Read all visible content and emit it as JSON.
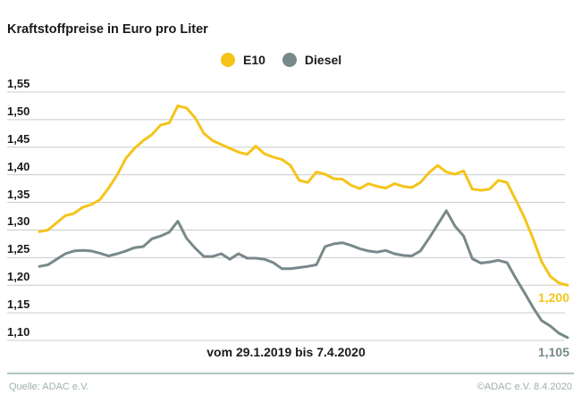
{
  "title": "Kraftstoffpreise in Euro pro Liter",
  "legend": {
    "items": [
      {
        "label": "E10",
        "color": "#f5c41a"
      },
      {
        "label": "Diesel",
        "color": "#78898b"
      }
    ]
  },
  "caption": "vom 29.1.2019 bis 7.4.2020",
  "footer": {
    "source": "Quelle: ADAC e.V.",
    "copyright": "©ADAC e.V.  8.4.2020"
  },
  "chart_data": {
    "type": "line",
    "title": "Kraftstoffpreise in Euro pro Liter",
    "xlabel": "vom 29.1.2019 bis 7.4.2020",
    "ylabel": "Euro pro Liter",
    "ylim": [
      1.1,
      1.55
    ],
    "grid": "horizontal",
    "legend_position": "top-center",
    "yticks": [
      "1,55",
      "1,50",
      "1,45",
      "1,40",
      "1,35",
      "1,30",
      "1,25",
      "1,20",
      "1,15",
      "1,10"
    ],
    "grid_color": "#cccccc",
    "series": [
      {
        "name": "E10",
        "color": "#f5c41a",
        "end_label": "1,200",
        "values": [
          1.297,
          1.3,
          1.313,
          1.326,
          1.33,
          1.341,
          1.346,
          1.355,
          1.376,
          1.4,
          1.43,
          1.448,
          1.462,
          1.473,
          1.49,
          1.494,
          1.525,
          1.521,
          1.503,
          1.475,
          1.462,
          1.455,
          1.448,
          1.441,
          1.437,
          1.452,
          1.438,
          1.432,
          1.428,
          1.417,
          1.39,
          1.386,
          1.405,
          1.401,
          1.393,
          1.392,
          1.381,
          1.375,
          1.384,
          1.379,
          1.376,
          1.384,
          1.379,
          1.377,
          1.386,
          1.404,
          1.417,
          1.405,
          1.401,
          1.407,
          1.374,
          1.372,
          1.374,
          1.39,
          1.386,
          1.355,
          1.323,
          1.285,
          1.243,
          1.216,
          1.204,
          1.2
        ]
      },
      {
        "name": "Diesel",
        "color": "#78898b",
        "end_label": "1,105",
        "values": [
          1.234,
          1.237,
          1.247,
          1.257,
          1.262,
          1.263,
          1.262,
          1.258,
          1.253,
          1.257,
          1.262,
          1.268,
          1.27,
          1.284,
          1.289,
          1.296,
          1.316,
          1.285,
          1.267,
          1.252,
          1.252,
          1.257,
          1.247,
          1.257,
          1.249,
          1.249,
          1.247,
          1.241,
          1.23,
          1.23,
          1.232,
          1.234,
          1.237,
          1.27,
          1.275,
          1.277,
          1.272,
          1.266,
          1.262,
          1.26,
          1.263,
          1.257,
          1.254,
          1.253,
          1.262,
          1.285,
          1.31,
          1.335,
          1.307,
          1.289,
          1.248,
          1.24,
          1.242,
          1.245,
          1.241,
          1.213,
          1.187,
          1.16,
          1.136,
          1.126,
          1.113,
          1.105
        ]
      }
    ]
  }
}
